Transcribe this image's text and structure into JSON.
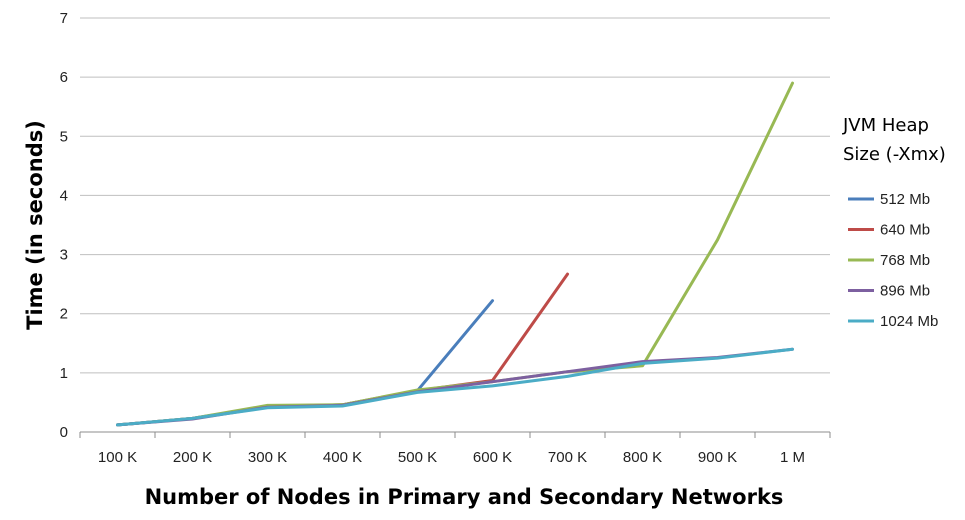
{
  "chart_data": {
    "type": "line",
    "categories": [
      "100 K",
      "200 K",
      "300 K",
      "400 K",
      "500 K",
      "600 K",
      "700 K",
      "800 K",
      "900 K",
      "1 M"
    ],
    "xlabel": "Number of Nodes in Primary and Secondary Networks",
    "ylabel": "Time (in seconds)",
    "ylim": [
      0,
      7
    ],
    "yticks": [
      0,
      1,
      2,
      3,
      4,
      5,
      6,
      7
    ],
    "grid": true,
    "legend": {
      "title_lines": [
        "JVM Heap",
        "Size (-Xmx)"
      ],
      "placement": "right"
    },
    "series": [
      {
        "name": "512 Mb",
        "color": "#4a7ebb",
        "values": [
          0.12,
          0.23,
          0.43,
          0.46,
          0.7,
          2.22,
          null,
          null,
          null,
          null
        ]
      },
      {
        "name": "640 Mb",
        "color": "#be4b48",
        "values": [
          0.12,
          0.23,
          0.43,
          0.46,
          0.7,
          0.87,
          2.67,
          null,
          null,
          null
        ]
      },
      {
        "name": "768 Mb",
        "color": "#98b954",
        "values": [
          0.12,
          0.23,
          0.45,
          0.46,
          0.71,
          0.85,
          1.02,
          1.12,
          3.25,
          5.9
        ]
      },
      {
        "name": "896 Mb",
        "color": "#7d60a0",
        "values": [
          0.12,
          0.22,
          0.42,
          0.45,
          0.68,
          0.85,
          1.02,
          1.19,
          1.26,
          1.4
        ]
      },
      {
        "name": "1024 Mb",
        "color": "#4bacc6",
        "values": [
          0.12,
          0.23,
          0.41,
          0.44,
          0.67,
          0.78,
          0.94,
          1.16,
          1.25,
          1.4
        ]
      }
    ]
  }
}
